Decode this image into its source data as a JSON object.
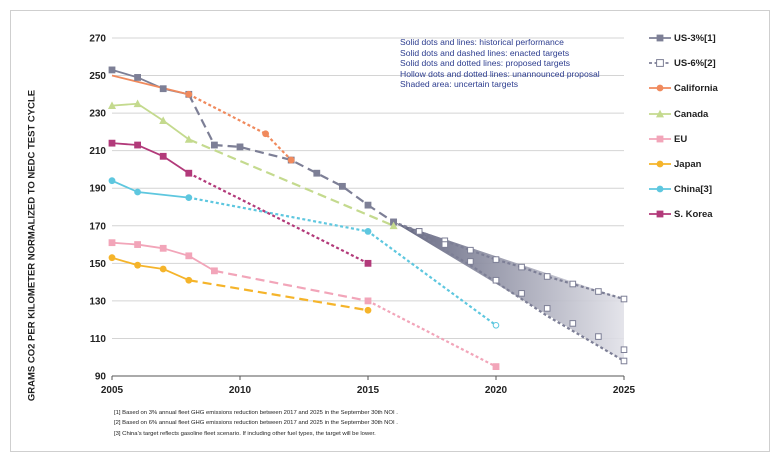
{
  "chart_data": {
    "type": "line",
    "ylabel": "GRAMS CO2 PER KILOMETER NORMALIZED TO NEDC TEST CYCLE",
    "xlim": [
      2005,
      2025
    ],
    "ylim": [
      90,
      270
    ],
    "x_ticks": [
      "2005",
      "2010",
      "2015",
      "2020",
      "2025"
    ],
    "y_ticks": [
      "90",
      "110",
      "130",
      "150",
      "170",
      "190",
      "210",
      "230",
      "250",
      "270"
    ],
    "grid": "horizontal",
    "legend_position": "right",
    "annotations": [
      "Solid dots and lines: historical performance",
      "Solid dots and dashed lines: enacted targets",
      "Solid dots and dotted lines: proposed targets",
      "Hollow dots and dotted lines: unannounced proposal",
      "Shaded area: uncertain targets"
    ],
    "footnotes": [
      "[1] Based on 3% annual fleet GHG emissions reduction between 2017 and 2025 in the September 30th NOI .",
      "[2] Based on 6% annual fleet GHG emissions reduction between 2017 and 2025 in the September 30th NOI .",
      "[3] China's target reflects gasoline fleet scenario. If including other fuel types, the target will be lower."
    ],
    "series": [
      {
        "name": "US-3%[1]",
        "color": "#7d7f96",
        "marker": "square",
        "points": [
          [
            2005,
            253
          ],
          [
            2006,
            249
          ],
          [
            2007,
            243
          ],
          [
            2008,
            240
          ],
          [
            2009,
            213
          ],
          [
            2010,
            212
          ],
          [
            2012,
            205
          ],
          [
            2013,
            198
          ],
          [
            2014,
            191
          ],
          [
            2015,
            181
          ],
          [
            2016,
            172
          ],
          [
            2017,
            167
          ],
          [
            2018,
            162
          ],
          [
            2019,
            157
          ],
          [
            2020,
            152
          ],
          [
            2021,
            148
          ],
          [
            2022,
            143
          ],
          [
            2023,
            139
          ],
          [
            2024,
            135
          ],
          [
            2025,
            131
          ]
        ],
        "segments": [
          {
            "x0": 2005,
            "x1": 2008,
            "style": "solid"
          },
          {
            "x0": 2008,
            "x1": 2016,
            "style": "dashed"
          },
          {
            "x0": 2016,
            "x1": 2025,
            "style": "dotted"
          }
        ],
        "hollow_from": 2017
      },
      {
        "name": "US-6%[2]",
        "color": "#7d7f96",
        "marker": "square",
        "points": [
          [
            2016,
            172
          ],
          [
            2017,
            167
          ],
          [
            2018,
            160
          ],
          [
            2019,
            151
          ],
          [
            2020,
            141
          ],
          [
            2021,
            134
          ],
          [
            2022,
            126
          ],
          [
            2023,
            118
          ],
          [
            2024,
            111
          ],
          [
            2025,
            104
          ],
          [
            2025,
            98
          ]
        ],
        "line_points": [
          [
            2016,
            172
          ],
          [
            2017,
            166
          ],
          [
            2018,
            157
          ],
          [
            2019,
            149
          ],
          [
            2020,
            140
          ],
          [
            2021,
            131
          ],
          [
            2022,
            122
          ],
          [
            2023,
            114
          ],
          [
            2024,
            106
          ],
          [
            2025,
            98
          ]
        ],
        "segments": [
          {
            "x0": 2016,
            "x1": 2025,
            "style": "dotted"
          }
        ],
        "hollow_from": 2017
      },
      {
        "name": "California",
        "color": "#f08a5d",
        "marker": "circle",
        "points": [
          [
            2008,
            240
          ],
          [
            2011,
            219
          ],
          [
            2012,
            205
          ]
        ],
        "line_points": [
          [
            2005,
            250
          ],
          [
            2008,
            240
          ],
          [
            2011,
            219
          ],
          [
            2012,
            205
          ]
        ],
        "segments": [
          {
            "x0": 2005,
            "x1": 2008,
            "style": "solid"
          },
          {
            "x0": 2008,
            "x1": 2012,
            "style": "dotted"
          }
        ]
      },
      {
        "name": "Canada",
        "color": "#c4da8e",
        "marker": "triangle",
        "points": [
          [
            2005,
            234
          ],
          [
            2006,
            235
          ],
          [
            2007,
            226
          ],
          [
            2008,
            216
          ],
          [
            2016,
            170
          ]
        ],
        "segments": [
          {
            "x0": 2005,
            "x1": 2008,
            "style": "solid"
          },
          {
            "x0": 2008,
            "x1": 2016,
            "style": "dashed"
          }
        ]
      },
      {
        "name": "EU",
        "color": "#f2a5b9",
        "marker": "square",
        "points": [
          [
            2005,
            161
          ],
          [
            2006,
            160
          ],
          [
            2007,
            158
          ],
          [
            2008,
            154
          ],
          [
            2009,
            146
          ],
          [
            2015,
            130
          ],
          [
            2020,
            95
          ]
        ],
        "segments": [
          {
            "x0": 2005,
            "x1": 2009,
            "style": "solid"
          },
          {
            "x0": 2009,
            "x1": 2015,
            "style": "dashed"
          },
          {
            "x0": 2015,
            "x1": 2020,
            "style": "dotted"
          }
        ]
      },
      {
        "name": "Japan",
        "color": "#f5b42a",
        "marker": "circle",
        "points": [
          [
            2005,
            153
          ],
          [
            2006,
            149
          ],
          [
            2007,
            147
          ],
          [
            2008,
            141
          ],
          [
            2015,
            125
          ]
        ],
        "segments": [
          {
            "x0": 2005,
            "x1": 2008,
            "style": "solid"
          },
          {
            "x0": 2008,
            "x1": 2015,
            "style": "dashed"
          }
        ]
      },
      {
        "name": "China[3]",
        "color": "#5ec7df",
        "marker": "circle",
        "points": [
          [
            2005,
            194
          ],
          [
            2006,
            188
          ],
          [
            2008,
            185
          ],
          [
            2015,
            167
          ],
          [
            2020,
            117
          ]
        ],
        "segments": [
          {
            "x0": 2005,
            "x1": 2008,
            "style": "solid"
          },
          {
            "x0": 2008,
            "x1": 2020,
            "style": "dotted"
          }
        ],
        "hollow_from": 2020
      },
      {
        "name": "S. Korea",
        "color": "#b23a7a",
        "marker": "square",
        "points": [
          [
            2005,
            214
          ],
          [
            2006,
            213
          ],
          [
            2007,
            207
          ],
          [
            2008,
            198
          ],
          [
            2015,
            150
          ]
        ],
        "segments": [
          {
            "x0": 2005,
            "x1": 2008,
            "style": "solid"
          },
          {
            "x0": 2008,
            "x1": 2015,
            "style": "dotted"
          }
        ]
      }
    ],
    "shaded_area": {
      "x0": 2016,
      "y0": 172,
      "x1": 2025,
      "y_top": 131,
      "y_bottom": 98
    }
  }
}
